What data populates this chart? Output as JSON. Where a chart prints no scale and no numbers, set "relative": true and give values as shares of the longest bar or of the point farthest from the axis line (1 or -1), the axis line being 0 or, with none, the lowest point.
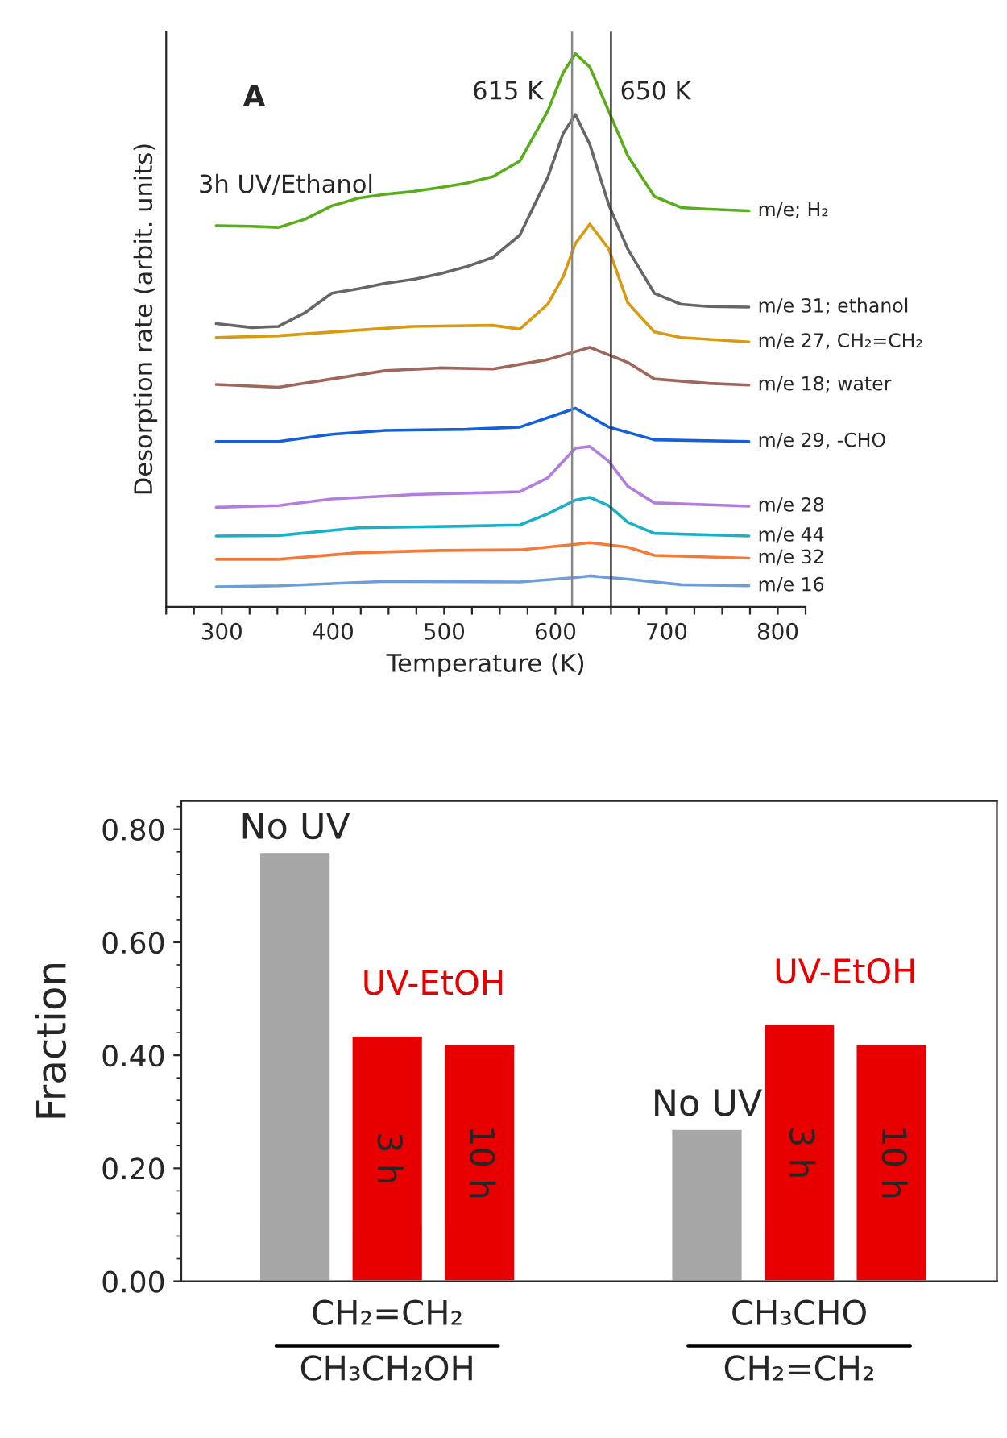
{
  "chart_data": [
    {
      "type": "line",
      "relative": true,
      "xlabel": "Temperature (K)",
      "ylabel": "Desorption rate (arbit. units)",
      "annotations": [
        "A",
        "3h UV/Ethanol"
      ],
      "xlim": [
        250,
        825
      ],
      "xticks": [
        {
          "value": 250,
          "label": null
        },
        {
          "value": 275,
          "label": null
        },
        300,
        {
          "value": 325,
          "label": null
        },
        {
          "value": 350,
          "label": null
        },
        {
          "value": 375,
          "label": null
        },
        400,
        {
          "value": 425,
          "label": null
        },
        {
          "value": 450,
          "label": null
        },
        {
          "value": 475,
          "label": null
        },
        500,
        {
          "value": 525,
          "label": null
        },
        {
          "value": 550,
          "label": null
        },
        {
          "value": 575,
          "label": null
        },
        600,
        {
          "value": 625,
          "label": null
        },
        {
          "value": 650,
          "label": null
        },
        {
          "value": 675,
          "label": null
        },
        700,
        {
          "value": 725,
          "label": null
        },
        {
          "value": 750,
          "label": null
        },
        {
          "value": 775,
          "label": null
        },
        800,
        {
          "value": 825,
          "label": null
        }
      ],
      "ref_lines": [
        {
          "axis": "x",
          "value": 615,
          "label": "615 K",
          "color": "#888888"
        },
        {
          "axis": "x",
          "value": 650,
          "label": "650 K",
          "color": "#333333"
        }
      ],
      "series": [
        {
          "name": "m/e; H₂",
          "color": "#5aad1a",
          "x": [
            295,
            327,
            351,
            375,
            399,
            423,
            447,
            472,
            496,
            520,
            544,
            568,
            593,
            607,
            618,
            631,
            648,
            665,
            689,
            713,
            738,
            774
          ],
          "values": [
            0.689,
            0.688,
            0.686,
            0.701,
            0.725,
            0.739,
            0.746,
            0.751,
            0.758,
            0.766,
            0.778,
            0.806,
            0.896,
            0.966,
            1,
            0.976,
            0.896,
            0.816,
            0.742,
            0.722,
            0.719,
            0.716
          ]
        },
        {
          "name": "m/e 31; ethanol",
          "color": "#666666",
          "x": [
            295,
            327,
            351,
            375,
            399,
            423,
            447,
            472,
            496,
            520,
            544,
            568,
            593,
            607,
            618,
            631,
            648,
            665,
            689,
            713,
            738,
            774
          ],
          "values": [
            0.512,
            0.505,
            0.507,
            0.532,
            0.567,
            0.575,
            0.585,
            0.592,
            0.602,
            0.615,
            0.632,
            0.672,
            0.776,
            0.856,
            0.89,
            0.836,
            0.727,
            0.647,
            0.567,
            0.547,
            0.543,
            0.542
          ]
        },
        {
          "name": "m/e 27, CH₂=CH₂",
          "color": "#d89a10",
          "x": [
            295,
            351,
            399,
            472,
            544,
            568,
            593,
            607,
            618,
            631,
            648,
            665,
            689,
            713,
            774
          ],
          "values": [
            0.487,
            0.49,
            0.497,
            0.507,
            0.509,
            0.502,
            0.547,
            0.597,
            0.657,
            0.692,
            0.647,
            0.55,
            0.497,
            0.487,
            0.479
          ]
        },
        {
          "name": "m/e 18; water",
          "color": "#a0665c",
          "x": [
            295,
            351,
            399,
            447,
            496,
            544,
            593,
            631,
            665,
            689,
            738,
            774
          ],
          "values": [
            0.402,
            0.397,
            0.412,
            0.427,
            0.432,
            0.43,
            0.447,
            0.469,
            0.442,
            0.412,
            0.404,
            0.401
          ]
        },
        {
          "name": "m/e 29, -CHO",
          "color": "#1560d8",
          "x": [
            295,
            351,
            399,
            447,
            520,
            568,
            593,
            618,
            648,
            689,
            774
          ],
          "values": [
            0.299,
            0.299,
            0.312,
            0.319,
            0.321,
            0.325,
            0.342,
            0.359,
            0.325,
            0.302,
            0.299
          ]
        },
        {
          "name": "m/e 28",
          "color": "#b27ce0",
          "x": [
            295,
            351,
            399,
            472,
            568,
            593,
            618,
            631,
            648,
            665,
            689,
            774
          ],
          "values": [
            0.18,
            0.183,
            0.195,
            0.203,
            0.208,
            0.233,
            0.287,
            0.29,
            0.263,
            0.218,
            0.188,
            0.182
          ]
        },
        {
          "name": "m/e 44",
          "color": "#1ab0c8",
          "x": [
            295,
            351,
            423,
            520,
            568,
            593,
            618,
            631,
            648,
            665,
            689,
            774
          ],
          "values": [
            0.128,
            0.129,
            0.143,
            0.146,
            0.148,
            0.168,
            0.193,
            0.198,
            0.183,
            0.153,
            0.133,
            0.128
          ]
        },
        {
          "name": "m/e 32",
          "color": "#f57a3a",
          "x": [
            295,
            351,
            423,
            496,
            568,
            618,
            631,
            665,
            689,
            774
          ],
          "values": [
            0.086,
            0.086,
            0.098,
            0.102,
            0.103,
            0.113,
            0.116,
            0.108,
            0.093,
            0.088
          ]
        },
        {
          "name": "m/e 16",
          "color": "#6e9ed8",
          "x": [
            295,
            351,
            447,
            568,
            618,
            631,
            665,
            713,
            774
          ],
          "values": [
            0.036,
            0.038,
            0.046,
            0.045,
            0.053,
            0.056,
            0.05,
            0.04,
            0.038
          ]
        }
      ]
    },
    {
      "type": "bar",
      "ylabel": "Fraction",
      "categories": [
        "CH₂=CH₂\nCH₃CH₂OH",
        "CH₃CHO\nCH₂=CH₂"
      ],
      "annotations": [
        "UV-EtOH",
        "UV-EtOH"
      ],
      "ylim": [
        0,
        0.85
      ],
      "yticks": [
        {
          "value": 0,
          "label": "0.00"
        },
        {
          "value": 0.2,
          "label": "0.20"
        },
        {
          "value": 0.4,
          "label": "0.40"
        },
        {
          "value": 0.6,
          "label": "0.60"
        },
        {
          "value": 0.8,
          "label": "0.80"
        }
      ],
      "series": [
        {
          "name": "No UV",
          "color": "#a6a6a6",
          "values": [
            0.76,
            0.27
          ]
        },
        {
          "name": "3 h",
          "color": "#e80000",
          "values": [
            0.435,
            0.455
          ]
        },
        {
          "name": "10 h",
          "color": "#e80000",
          "values": [
            0.42,
            0.42
          ]
        }
      ]
    }
  ]
}
